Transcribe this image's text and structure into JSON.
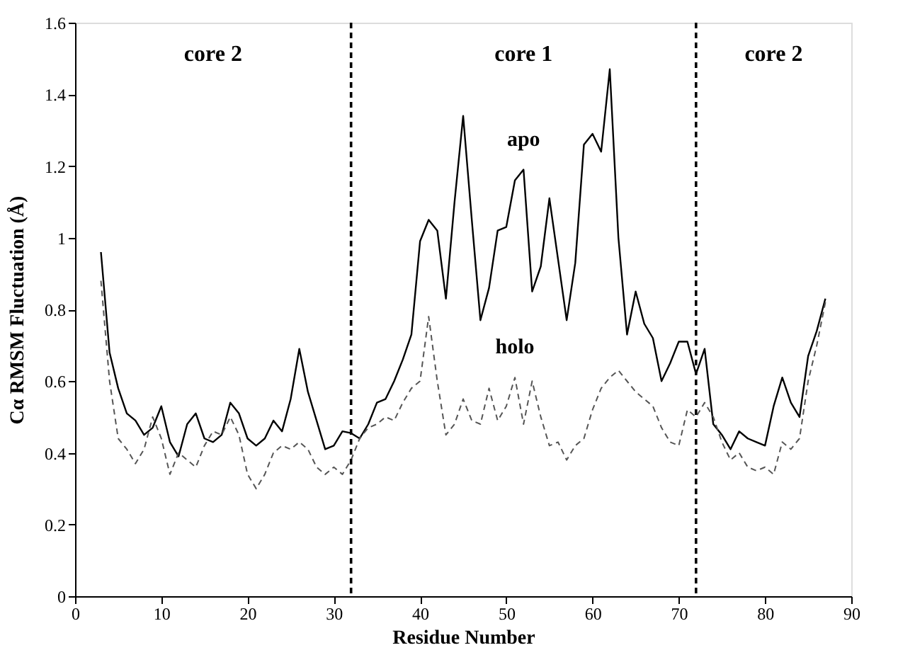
{
  "chart_data": {
    "type": "line",
    "xlabel": "Residue Number",
    "ylabel": "Cα RMSM Fluctuation (Å)",
    "x": [
      3,
      4,
      5,
      6,
      7,
      8,
      9,
      10,
      11,
      12,
      13,
      14,
      15,
      16,
      17,
      18,
      19,
      20,
      21,
      22,
      23,
      24,
      25,
      26,
      27,
      28,
      29,
      30,
      31,
      32,
      33,
      34,
      35,
      36,
      37,
      38,
      39,
      40,
      41,
      42,
      43,
      44,
      45,
      46,
      47,
      48,
      49,
      50,
      51,
      52,
      53,
      54,
      55,
      56,
      57,
      58,
      59,
      60,
      61,
      62,
      63,
      64,
      65,
      66,
      67,
      68,
      69,
      70,
      71,
      72,
      73,
      74,
      75,
      76,
      77,
      78,
      79,
      80,
      81,
      82,
      83,
      84,
      85,
      86,
      87
    ],
    "series": [
      {
        "color": "#000000",
        "line_style": "solid",
        "values": [
          0.96,
          0.68,
          0.58,
          0.51,
          0.49,
          0.45,
          0.47,
          0.53,
          0.43,
          0.39,
          0.48,
          0.51,
          0.44,
          0.43,
          0.45,
          0.54,
          0.51,
          0.44,
          0.42,
          0.44,
          0.49,
          0.46,
          0.55,
          0.69,
          0.57,
          0.49,
          0.41,
          0.42,
          0.46,
          0.455,
          0.44,
          0.48,
          0.54,
          0.55,
          0.6,
          0.66,
          0.73,
          0.99,
          1.05,
          1.02,
          0.83,
          1.1,
          1.34,
          1.05,
          0.77,
          0.86,
          1.02,
          1.03,
          1.16,
          1.19,
          0.85,
          0.92,
          1.11,
          0.94,
          0.77,
          0.93,
          1.26,
          1.29,
          1.24,
          1.47,
          1.0,
          0.73,
          0.85,
          0.76,
          0.72,
          0.6,
          0.65,
          0.71,
          0.71,
          0.62,
          0.69,
          0.48,
          0.45,
          0.41,
          0.46,
          0.44,
          0.43,
          0.42,
          0.53,
          0.61,
          0.54,
          0.5,
          0.67,
          0.74,
          0.83
        ]
      },
      {
        "color": "#555555",
        "line_style": "dashed",
        "values": [
          0.88,
          0.6,
          0.44,
          0.41,
          0.37,
          0.41,
          0.5,
          0.44,
          0.34,
          0.4,
          0.38,
          0.36,
          0.42,
          0.46,
          0.45,
          0.5,
          0.45,
          0.34,
          0.3,
          0.34,
          0.4,
          0.42,
          0.41,
          0.43,
          0.41,
          0.36,
          0.34,
          0.36,
          0.34,
          0.38,
          0.44,
          0.47,
          0.48,
          0.5,
          0.49,
          0.54,
          0.58,
          0.6,
          0.78,
          0.6,
          0.45,
          0.48,
          0.55,
          0.49,
          0.48,
          0.58,
          0.49,
          0.53,
          0.61,
          0.48,
          0.6,
          0.5,
          0.42,
          0.43,
          0.38,
          0.42,
          0.44,
          0.52,
          0.58,
          0.61,
          0.63,
          0.6,
          0.57,
          0.55,
          0.53,
          0.47,
          0.43,
          0.42,
          0.52,
          0.5,
          0.54,
          0.5,
          0.43,
          0.38,
          0.4,
          0.36,
          0.35,
          0.36,
          0.34,
          0.43,
          0.41,
          0.44,
          0.6,
          0.7,
          0.82
        ]
      }
    ],
    "xlim": [
      0,
      90
    ],
    "xticks": [
      0,
      10,
      20,
      30,
      40,
      50,
      60,
      70,
      80,
      90
    ],
    "ylim": [
      0,
      1.6
    ],
    "yticks": [
      0,
      0.2,
      0.4,
      0.6,
      0.8,
      1,
      1.2,
      1.4,
      1.6
    ],
    "ref_lines": [
      {
        "axis": "x",
        "value": 32,
        "line_style": "dashed",
        "color": "#000000"
      },
      {
        "axis": "x",
        "value": 72,
        "line_style": "dashed",
        "color": "#000000"
      }
    ],
    "annotations": [
      "core 2",
      "core 1",
      "core 2",
      {
        "text": "apo",
        "x": 52,
        "y": 1.19
      },
      {
        "text": "holo",
        "x": 51,
        "y": 0.61
      }
    ],
    "grid": false,
    "marker": "none"
  }
}
